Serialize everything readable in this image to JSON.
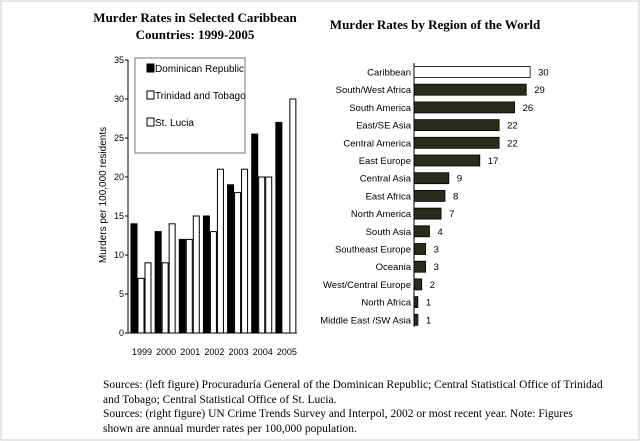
{
  "chart_data": [
    {
      "type": "bar",
      "title": "Murder Rates in Selected Caribbean Countries: 1999-2005",
      "ylabel": "Murders per 100,000 residents",
      "xlabel": "",
      "categories": [
        "1999",
        "2000",
        "2001",
        "2002",
        "2003",
        "2004",
        "2005"
      ],
      "ylim": [
        0,
        35
      ],
      "yticks": [
        0,
        5,
        10,
        15,
        20,
        25,
        30,
        35
      ],
      "legend": "top-left",
      "series": [
        {
          "name": "Dominican Republic",
          "color": "#000000",
          "values": [
            14,
            13,
            12,
            15,
            19,
            25.5,
            27
          ]
        },
        {
          "name": "Trinidad and Tobago",
          "color": "#ffffff",
          "values": [
            7,
            9,
            12,
            13,
            18,
            20,
            null
          ]
        },
        {
          "name": "St. Lucia",
          "color": "#ffffff",
          "values": [
            9,
            14,
            15,
            21,
            21,
            20,
            30
          ]
        }
      ]
    },
    {
      "type": "bar",
      "orientation": "horizontal",
      "title": "Murder Rates by Region of the World",
      "categories": [
        "Caribbean",
        "South/West Africa",
        "South America",
        "East/SE Asia",
        "Central America",
        "East Europe",
        "Central Asia",
        "East Africa",
        "North America",
        "South Asia",
        "Southeast Europe",
        "Oceania",
        "West/Central Europe",
        "North Africa",
        "Middle East /SW Asia"
      ],
      "values": [
        30,
        29,
        26,
        22,
        22,
        17,
        9,
        8,
        7,
        4,
        3,
        3,
        2,
        1,
        1
      ],
      "colors": {
        "highlight": "#ffffff",
        "default": "#2b2b1a"
      }
    }
  ],
  "notes": [
    "Sources: (left figure) Procuraduría General of the Dominican Republic; Central Statistical Office of Trinidad and Tobago; Central Statistical Office of St. Lucia.",
    "Sources: (right figure) UN Crime Trends Survey and Interpol, 2002 or most recent year. Note: Figures shown are annual murder rates per 100,000 population."
  ]
}
